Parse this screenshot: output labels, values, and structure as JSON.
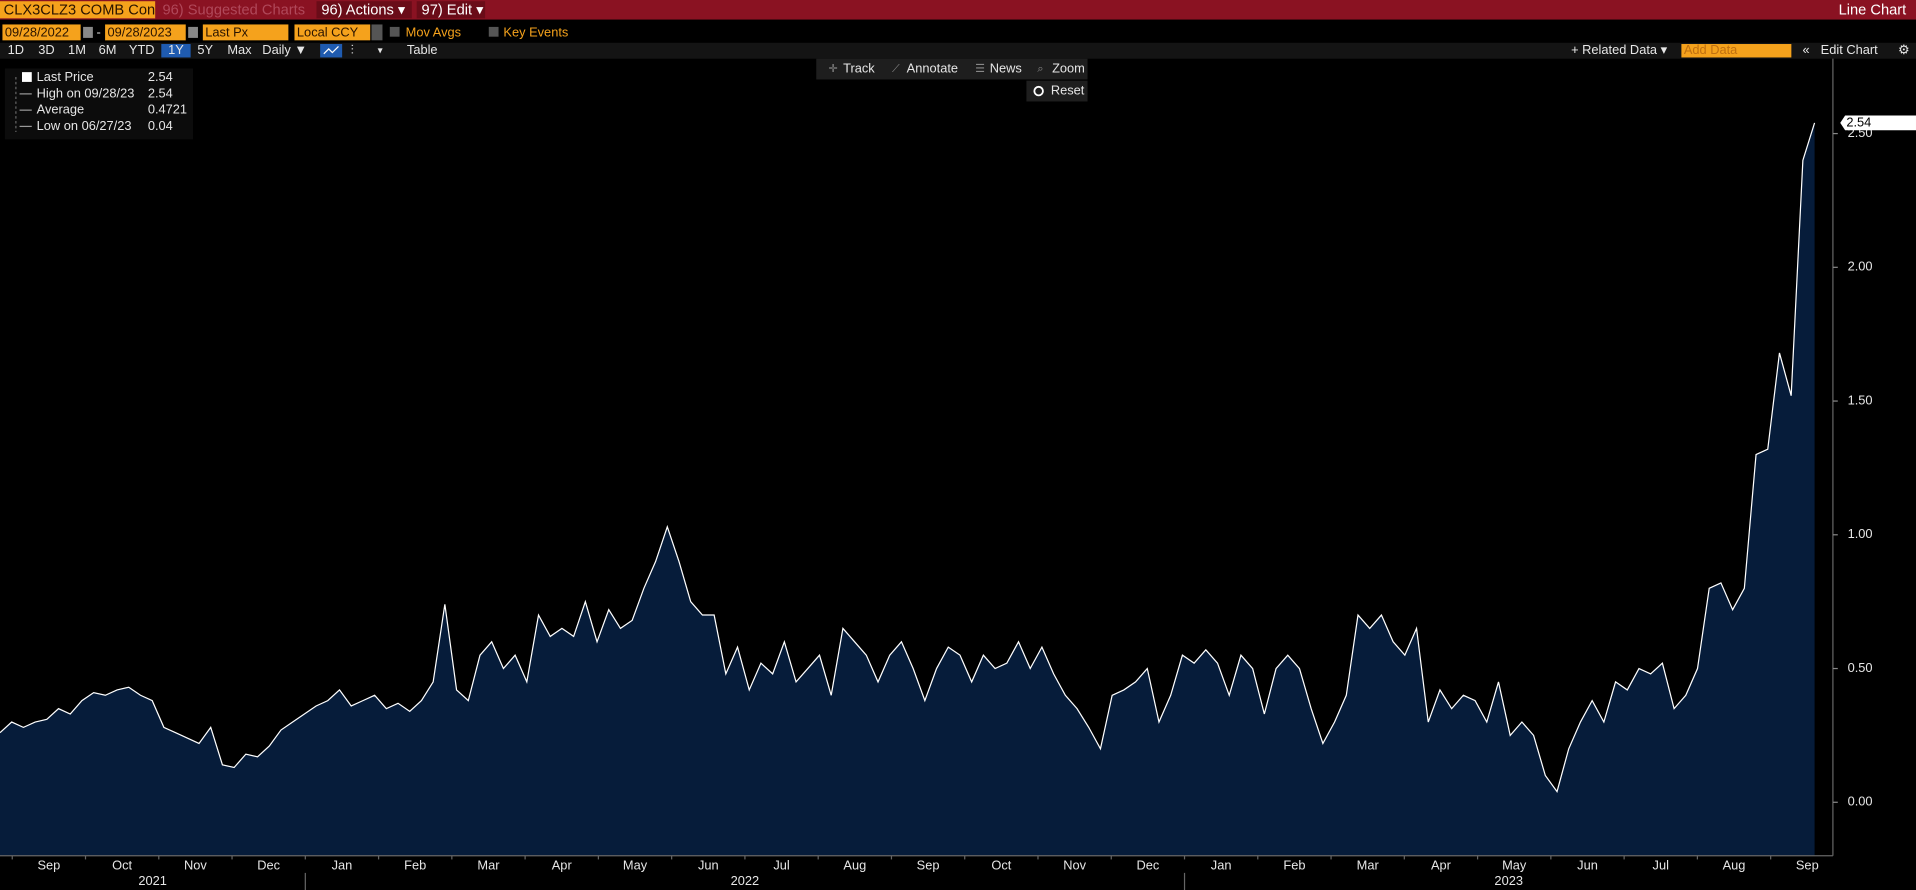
{
  "ui": {
    "security": "CLX3CLZ3 COMB Con",
    "suggested": "96) Suggested Charts",
    "actions": "96) Actions ▾",
    "edit": "97) Edit ▾",
    "chart_kind": "Line Chart",
    "start_date": "09/28/2022",
    "dash": "-",
    "end_date": "09/28/2023",
    "field": "Last Px",
    "currency": "Local CCY",
    "mov_avgs": "Mov Avgs",
    "key_events": "Key Events",
    "periods": [
      "1D",
      "3D",
      "1M",
      "6M",
      "YTD",
      "1Y",
      "5Y",
      "Max"
    ],
    "frequency": "Daily ▼",
    "table": "Table",
    "related_data": "+ Related Data ▾",
    "add_data": "Add Data",
    "edit_chart": "Edit Chart",
    "tools": [
      "Track",
      "Annotate",
      "News",
      "Zoom"
    ],
    "reset": "Reset"
  },
  "chart_data": {
    "type": "area",
    "series": [
      {
        "name": "Last Price",
        "color": "#ffffff",
        "fill": "#061c3a",
        "values": [
          0.26,
          0.3,
          0.28,
          0.3,
          0.31,
          0.35,
          0.33,
          0.38,
          0.41,
          0.4,
          0.42,
          0.43,
          0.4,
          0.38,
          0.28,
          0.26,
          0.24,
          0.22,
          0.28,
          0.14,
          0.13,
          0.18,
          0.17,
          0.21,
          0.27,
          0.3,
          0.33,
          0.36,
          0.38,
          0.42,
          0.36,
          0.38,
          0.4,
          0.35,
          0.37,
          0.34,
          0.38,
          0.45,
          0.74,
          0.42,
          0.38,
          0.55,
          0.6,
          0.5,
          0.55,
          0.45,
          0.7,
          0.62,
          0.65,
          0.62,
          0.75,
          0.6,
          0.72,
          0.65,
          0.68,
          0.8,
          0.9,
          1.03,
          0.9,
          0.75,
          0.7,
          0.7,
          0.48,
          0.58,
          0.42,
          0.52,
          0.48,
          0.6,
          0.45,
          0.5,
          0.55,
          0.4,
          0.65,
          0.6,
          0.55,
          0.45,
          0.55,
          0.6,
          0.5,
          0.38,
          0.5,
          0.58,
          0.55,
          0.45,
          0.55,
          0.5,
          0.52,
          0.6,
          0.5,
          0.58,
          0.48,
          0.4,
          0.35,
          0.28,
          0.2,
          0.4,
          0.42,
          0.45,
          0.5,
          0.3,
          0.4,
          0.55,
          0.52,
          0.57,
          0.52,
          0.4,
          0.55,
          0.5,
          0.33,
          0.5,
          0.55,
          0.5,
          0.35,
          0.22,
          0.3,
          0.4,
          0.7,
          0.65,
          0.7,
          0.6,
          0.55,
          0.65,
          0.3,
          0.42,
          0.35,
          0.4,
          0.38,
          0.3,
          0.45,
          0.25,
          0.3,
          0.25,
          0.1,
          0.04,
          0.2,
          0.3,
          0.38,
          0.3,
          0.45,
          0.42,
          0.5,
          0.48,
          0.52,
          0.35,
          0.4,
          0.5,
          0.8,
          0.82,
          0.72,
          0.8,
          1.3,
          1.32,
          1.68,
          1.52,
          2.4,
          2.54
        ]
      }
    ],
    "stats": {
      "last": 2.54,
      "high_label": "High on 09/28/23",
      "high": 2.54,
      "average_label": "Average",
      "average": 0.4721,
      "low_label": "Low on 06/27/23",
      "low": 0.04
    },
    "months": [
      "Sep",
      "Oct",
      "Nov",
      "Dec",
      "Jan",
      "Feb",
      "Mar",
      "Apr",
      "May",
      "Jun",
      "Jul",
      "Aug",
      "Sep",
      "Oct",
      "Nov",
      "Dec",
      "Jan",
      "Feb",
      "Mar",
      "Apr",
      "May",
      "Jun",
      "Jul",
      "Aug",
      "Sep"
    ],
    "years": [
      "2021",
      "2022",
      "2023"
    ],
    "ylim": [
      -0.2,
      2.78
    ],
    "yticks": [
      {
        "value": 0,
        "label": "0.00"
      },
      {
        "value": 0.5,
        "label": "0.50"
      },
      {
        "value": 1,
        "label": "1.00"
      },
      {
        "value": 1.5,
        "label": "1.50"
      },
      {
        "value": 2,
        "label": "2.00"
      },
      {
        "value": 2.5,
        "label": "2.50"
      }
    ]
  }
}
